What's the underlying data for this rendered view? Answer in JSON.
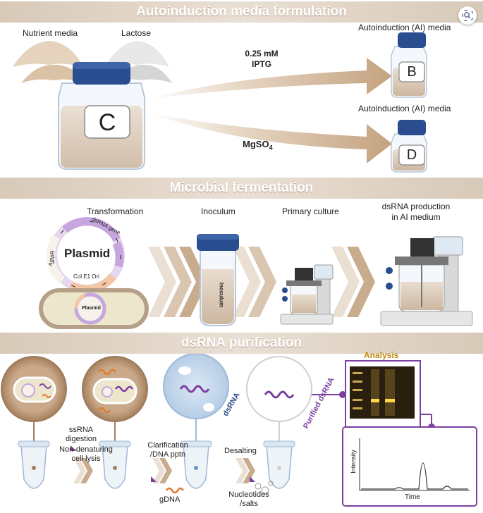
{
  "banners": {
    "section1": "Autoinduction media formulation",
    "section2": "Microbial fermentation",
    "section3": "dsRNA purification"
  },
  "section1": {
    "nutrient_media": "Nutrient media",
    "lactose": "Lactose",
    "jar_c": "C",
    "jar_b": "B",
    "jar_d": "D",
    "iptg_amount": "0.25 mM",
    "iptg": "IPTG",
    "mgso4": "MgSO",
    "mgso4_sub": "4",
    "ai_media_b": "Autoinduction (AI) media",
    "ai_media_d": "Autoinduction (AI) media"
  },
  "section2": {
    "transformation": "Transformation",
    "inoculum": "Inoculum",
    "primary_culture": "Primary culture",
    "dsrna_production_1": "dsRNA production",
    "dsrna_production_2": "in AI medium",
    "plasmid": "Plasmid",
    "dsrna_gene": "dsRNA gene",
    "ampr": "AmpR",
    "col_e1": "Col E1 Ori",
    "plasmid_small": "Plasmid",
    "inoculum_tube": "Inoculum"
  },
  "section3": {
    "analysis": "Analysis",
    "ssrna_1": "ssRNA",
    "ssrna_2": "digestion",
    "nondenat_1": "Non-denaturing",
    "nondenat_2": "cell lysis",
    "clarif_1": "Clarification",
    "clarif_2": "/DNA pptn",
    "desalting": "Desalting",
    "gdna": "gDNA",
    "nucleotides_1": "Nucleotides",
    "nucleotides_2": "/salts",
    "dsrna": "dsRNA",
    "purified_dsrna": "Purified dsRNA",
    "intensity": "Intensity",
    "time": "Time"
  },
  "colors": {
    "banner": "#dccdbd",
    "arrow": "#c7a88a",
    "cap": "#2a4d8f",
    "purple": "#7b3fa0",
    "gel": "#2a1f0e"
  },
  "icons": {
    "zoom": "zoom-icon"
  }
}
